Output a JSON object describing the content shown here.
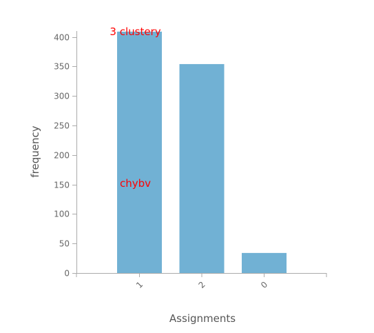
{
  "chart_data": {
    "type": "bar",
    "categories": [
      "1",
      "2",
      "0"
    ],
    "values": [
      409,
      354,
      34
    ],
    "xlabel": "Assignments",
    "ylabel": "frequency",
    "ylim": [
      0,
      410
    ],
    "yticks": [
      0,
      50,
      100,
      150,
      200,
      250,
      300,
      350,
      400
    ],
    "grid": false,
    "bar_color": "#71b1d4",
    "annotations": [
      {
        "text": "3 clustery",
        "color": "#ff0000",
        "bar": "1",
        "at_value": 409
      },
      {
        "text": "chybv",
        "color": "#ff0000",
        "bar": "1",
        "at_value": 140
      }
    ]
  }
}
